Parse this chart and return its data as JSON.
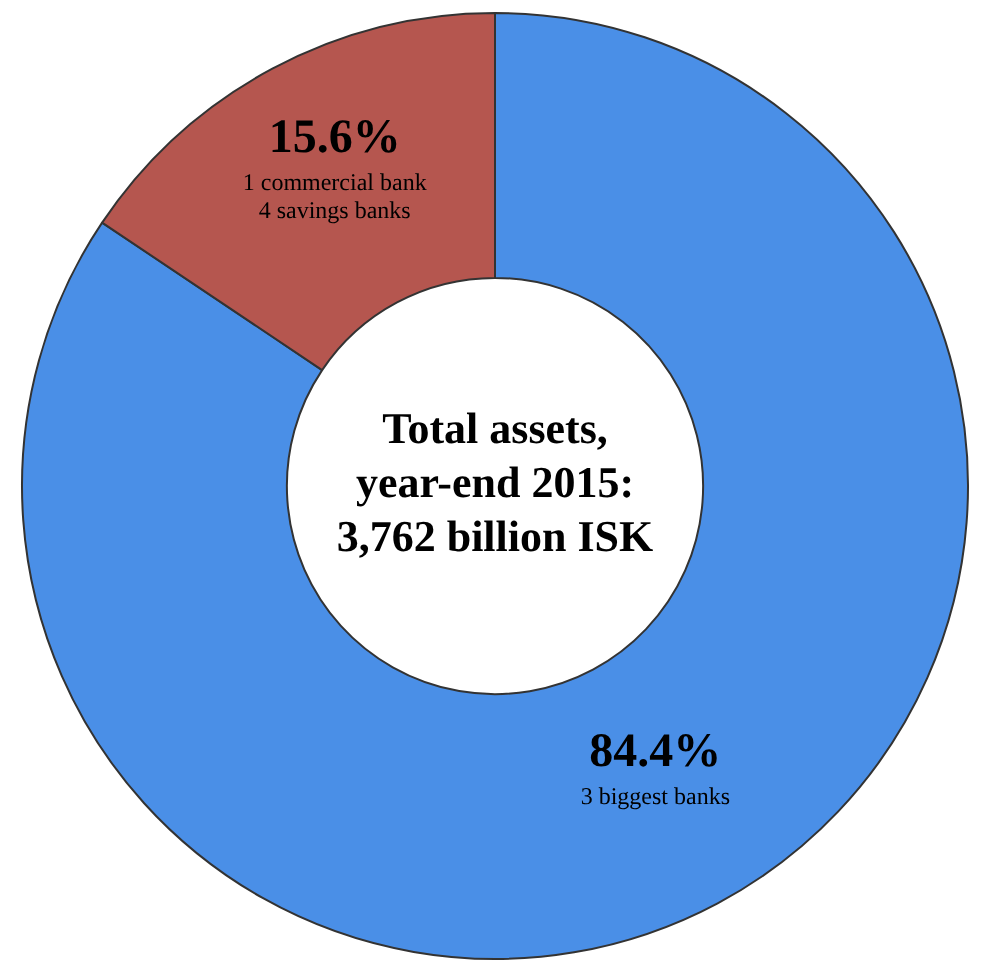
{
  "chart_data": {
    "type": "donut",
    "categories": [
      "3 biggest banks",
      "1 commercial bank\n4 savings banks"
    ],
    "values": [
      84.4,
      15.6
    ],
    "value_labels": [
      "84.4%",
      "15.6%"
    ],
    "colors": [
      "#4a8fe7",
      "#b5564f"
    ],
    "annotations": [
      "Total assets,\nyear-end 2015:\n3,762 billion ISK"
    ],
    "legend": false
  }
}
